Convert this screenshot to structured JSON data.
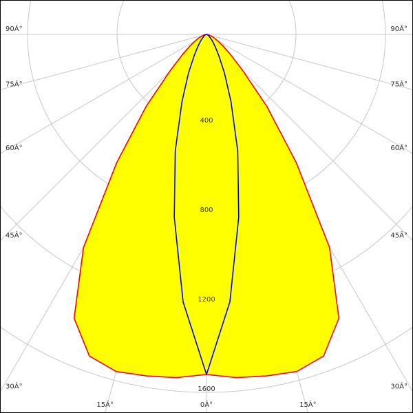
{
  "chart_data": {
    "type": "polar",
    "angles": [
      0,
      5,
      10,
      15,
      20,
      25,
      30,
      35,
      40,
      45,
      50,
      55,
      60,
      65,
      70,
      75,
      80,
      85,
      90
    ],
    "series": [
      {
        "color": "#ff0000",
        "fill": "#ffff00",
        "values": [
          1520,
          1540,
          1550,
          1560,
          1530,
          1400,
          1100,
          700,
          420,
          230,
          140,
          90,
          60,
          40,
          25,
          15,
          8,
          4,
          0
        ]
      },
      {
        "color": "#0000ff",
        "values": [
          1520,
          1200,
          830,
          540,
          320,
          190,
          110,
          70,
          45,
          30,
          20,
          14,
          10,
          7,
          5,
          3,
          2,
          1,
          0
        ]
      }
    ],
    "rlim": [
      0,
      1600
    ],
    "rticks": [
      400,
      800,
      1200,
      1600
    ],
    "angle_ticks": [
      {
        "value": 0,
        "label": "0Â°"
      },
      {
        "value": 15,
        "label": "15Â°"
      },
      {
        "value": 30,
        "label": "30Â°"
      },
      {
        "value": 45,
        "label": "45Â°"
      },
      {
        "value": 60,
        "label": "60Â°"
      },
      {
        "value": 75,
        "label": "75Â°"
      },
      {
        "value": 90,
        "label": "90Â°"
      }
    ],
    "grid": true
  }
}
